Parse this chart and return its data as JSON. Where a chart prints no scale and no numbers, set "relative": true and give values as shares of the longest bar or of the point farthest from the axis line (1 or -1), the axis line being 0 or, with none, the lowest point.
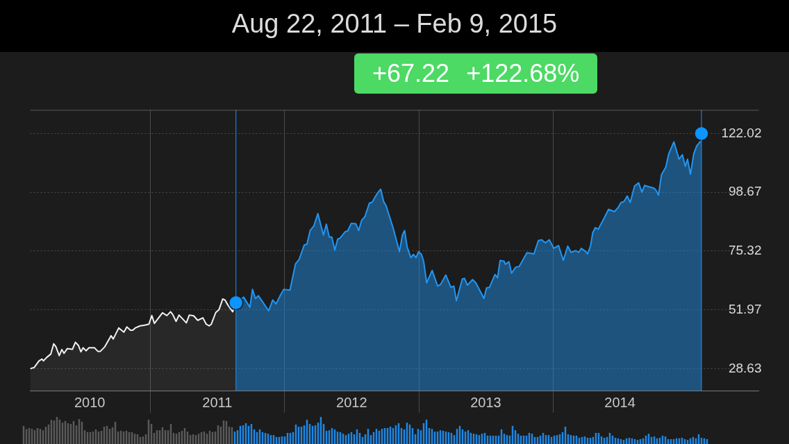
{
  "chart_data": [
    {
      "type": "area",
      "title": "Aug 22, 2011 – Feb 9, 2015",
      "annotations": [
        "+67.22",
        "+122.68%"
      ],
      "xlim": [
        "2010-02-08",
        "2015-07-15"
      ],
      "xticks": [
        {
          "value": "2011-01-01",
          "label": null
        },
        {
          "value": "2012-01-01",
          "label": null
        },
        {
          "value": "2013-01-01",
          "label": null
        },
        {
          "value": "2014-01-01",
          "label": null
        },
        {
          "value": "2010-07-20",
          "label": "2010"
        },
        {
          "value": "2011-07-02",
          "label": "2011"
        },
        {
          "value": "2012-07-02",
          "label": "2012"
        },
        {
          "value": "2013-07-02",
          "label": "2013"
        },
        {
          "value": "2014-07-02",
          "label": "2014"
        }
      ],
      "ylim": [
        19.9,
        131.4
      ],
      "yticks": [
        28.63,
        51.97,
        75.32,
        98.67,
        122.02
      ],
      "grid": true,
      "ref_lines": [
        {
          "axis": "x",
          "value": "2011-08-22",
          "color": "#1e90ff"
        },
        {
          "axis": "x",
          "value": "2015-02-09",
          "color": "#1e90ff"
        }
      ],
      "series": [
        {
          "type": "area",
          "color": "#f2f2f2",
          "x": [
            "2010-02-08",
            "2010-02-19",
            "2010-03-04",
            "2010-03-12",
            "2010-03-16",
            "2010-03-25",
            "2010-04-05",
            "2010-04-13",
            "2010-04-19",
            "2010-04-28",
            "2010-05-05",
            "2010-05-11",
            "2010-05-20",
            "2010-06-03",
            "2010-06-11",
            "2010-06-19",
            "2010-06-26",
            "2010-07-02",
            "2010-07-10",
            "2010-07-18",
            "2010-08-02",
            "2010-08-11",
            "2010-08-18",
            "2010-08-30",
            "2010-09-16",
            "2010-09-22",
            "2010-10-07",
            "2010-10-21",
            "2010-10-29",
            "2010-11-08",
            "2010-11-14",
            "2010-11-21",
            "2010-12-04",
            "2010-12-16",
            "2010-12-28",
            "2011-01-05",
            "2011-01-12",
            "2011-02-03",
            "2011-02-15",
            "2011-02-25",
            "2011-03-03",
            "2011-03-12",
            "2011-03-20",
            "2011-04-09",
            "2011-04-17",
            "2011-04-29",
            "2011-05-10",
            "2011-05-24",
            "2011-06-02",
            "2011-06-10",
            "2011-06-16",
            "2011-06-28",
            "2011-07-07",
            "2011-07-17",
            "2011-07-23",
            "2011-07-31",
            "2011-08-13",
            "2011-08-22"
          ],
          "values": [
            28.6,
            29.1,
            31.7,
            32.4,
            31.7,
            33.1,
            34.4,
            38.5,
            37.3,
            33.8,
            36.2,
            34.7,
            36.6,
            36.3,
            39.1,
            37.9,
            35.3,
            36.9,
            35.7,
            36.9,
            36.9,
            35.5,
            35.5,
            37.3,
            41.7,
            40.4,
            44.8,
            43.1,
            45.2,
            43.9,
            43.9,
            44.8,
            45.6,
            45.9,
            46.3,
            49.7,
            46.6,
            50.8,
            49.7,
            51.2,
            50.1,
            47.4,
            49.9,
            46.8,
            49.9,
            49.6,
            47.8,
            48.8,
            46.3,
            45.6,
            46.3,
            50.9,
            52.1,
            56.3,
            55.9,
            53.9,
            51.2,
            54.8
          ]
        },
        {
          "type": "area",
          "color": "#2196f3",
          "x": [
            "2011-08-22",
            "2011-09-12",
            "2011-09-29",
            "2011-10-06",
            "2011-10-14",
            "2011-10-22",
            "2011-10-30",
            "2011-11-19",
            "2011-11-30",
            "2011-12-09",
            "2011-12-21",
            "2011-12-30",
            "2012-01-16",
            "2012-01-31",
            "2012-02-10",
            "2012-02-24",
            "2012-03-02",
            "2012-03-11",
            "2012-03-21",
            "2012-04-01",
            "2012-04-16",
            "2012-04-24",
            "2012-05-02",
            "2012-05-09",
            "2012-05-17",
            "2012-05-25",
            "2012-05-31",
            "2012-06-15",
            "2012-06-21",
            "2012-07-01",
            "2012-07-13",
            "2012-07-21",
            "2012-07-29",
            "2012-08-07",
            "2012-08-19",
            "2012-08-27",
            "2012-09-09",
            "2012-09-19",
            "2012-09-27",
            "2012-10-04",
            "2012-10-23",
            "2012-11-09",
            "2012-11-17",
            "2012-11-23",
            "2012-11-30",
            "2012-12-10",
            "2012-12-17",
            "2012-12-24",
            "2012-12-31",
            "2013-01-08",
            "2013-01-14",
            "2013-01-22",
            "2013-02-06",
            "2013-02-21",
            "2013-03-01",
            "2013-03-15",
            "2013-03-29",
            "2013-04-06",
            "2013-04-13",
            "2013-04-29",
            "2013-05-05",
            "2013-05-13",
            "2013-05-27",
            "2013-06-05",
            "2013-06-27",
            "2013-07-04",
            "2013-07-12",
            "2013-07-27",
            "2013-08-03",
            "2013-08-10",
            "2013-08-21",
            "2013-08-24",
            "2013-09-03",
            "2013-09-10",
            "2013-09-21",
            "2013-10-01",
            "2013-10-22",
            "2013-11-10",
            "2013-11-22",
            "2013-12-01",
            "2013-12-11",
            "2013-12-22",
            "2014-01-03",
            "2014-01-16",
            "2014-01-29",
            "2014-02-10",
            "2014-02-19",
            "2014-03-04",
            "2014-03-12",
            "2014-03-19",
            "2014-03-28",
            "2014-04-05",
            "2014-04-13",
            "2014-04-19",
            "2014-04-26",
            "2014-05-04",
            "2014-05-20",
            "2014-06-01",
            "2014-06-17",
            "2014-06-26",
            "2014-07-05",
            "2014-07-13",
            "2014-07-22",
            "2014-07-30",
            "2014-08-11",
            "2014-08-22",
            "2014-08-31",
            "2014-09-07",
            "2014-09-21",
            "2014-10-03",
            "2014-10-09",
            "2014-10-15",
            "2014-10-23",
            "2014-11-04",
            "2014-11-12",
            "2014-11-26",
            "2014-12-10",
            "2014-12-19",
            "2014-12-27",
            "2015-01-02",
            "2015-01-10",
            "2015-01-19",
            "2015-01-27",
            "2015-02-06",
            "2015-02-09"
          ],
          "values": [
            54.8,
            57.0,
            53.0,
            60.1,
            56.5,
            57.6,
            55.9,
            51.6,
            55.9,
            54.3,
            57.8,
            60.1,
            59.8,
            70.2,
            72.0,
            77.8,
            78.0,
            83.5,
            85.3,
            90.2,
            81.7,
            86.0,
            80.9,
            80.9,
            75.7,
            80.1,
            80.4,
            83.1,
            83.3,
            86.3,
            86.2,
            83.5,
            87.5,
            89.0,
            94.3,
            94.8,
            98.1,
            99.9,
            95.0,
            93.2,
            84.4,
            75.1,
            81.7,
            83.5,
            76.9,
            72.7,
            74.0,
            72.7,
            75.1,
            74.0,
            71.1,
            62.7,
            67.6,
            61.4,
            62.1,
            65.8,
            60.9,
            61.4,
            55.6,
            64.2,
            64.5,
            61.8,
            64.0,
            62.7,
            56.5,
            60.7,
            60.9,
            66.0,
            64.7,
            71.6,
            71.3,
            70.1,
            71.1,
            66.5,
            68.9,
            69.2,
            74.7,
            74.2,
            79.5,
            79.8,
            78.6,
            79.8,
            76.4,
            77.5,
            71.6,
            77.3,
            74.8,
            75.5,
            74.8,
            76.4,
            75.5,
            74.2,
            77.3,
            82.6,
            84.6,
            84.0,
            88.4,
            91.9,
            91.0,
            92.4,
            94.6,
            95.0,
            97.2,
            94.6,
            101.2,
            102.4,
            98.7,
            101.4,
            100.8,
            100.3,
            99.3,
            97.5,
            105.6,
            108.7,
            114.0,
            118.7,
            111.8,
            113.6,
            109.0,
            111.8,
            105.8,
            114.0,
            117.1,
            118.9,
            122.0
          ]
        },
        {
          "type": "scatter",
          "color": "#0a95ff",
          "marker": "circle",
          "x": [
            "2011-08-22",
            "2015-02-09"
          ],
          "values": [
            54.8,
            122.0
          ]
        }
      ]
    },
    {
      "type": "bar",
      "relative": true,
      "categories": [
        null,
        null,
        null,
        null,
        null,
        null,
        null,
        null,
        null,
        null,
        null,
        null,
        null,
        null,
        null,
        null,
        null,
        null,
        null,
        null,
        null,
        null,
        null,
        null,
        null,
        null,
        null,
        null,
        null,
        null,
        null,
        null,
        null,
        null,
        null,
        null,
        null,
        null,
        null,
        null,
        null,
        null,
        null,
        null,
        null,
        null,
        null,
        null,
        null,
        null,
        null,
        null,
        null,
        null,
        null,
        null,
        null,
        null,
        null,
        null,
        null,
        null,
        null,
        null,
        null,
        null,
        null,
        null,
        null,
        null,
        null,
        null,
        null,
        null,
        null,
        null,
        null,
        null,
        null,
        null,
        null,
        null,
        null,
        null,
        null,
        null,
        null,
        null,
        null,
        null,
        null,
        null,
        null,
        null,
        null,
        null,
        null,
        null,
        null,
        null,
        null,
        null,
        null,
        null,
        null,
        null,
        null,
        null,
        null,
        null,
        null,
        null,
        null,
        null,
        null,
        null,
        null,
        null,
        null,
        null,
        null,
        null,
        null,
        null,
        null,
        null,
        null,
        null,
        null,
        null,
        null,
        null,
        null,
        null,
        null,
        null,
        null,
        null,
        null,
        null,
        null,
        null,
        null,
        null,
        null,
        null,
        null,
        null,
        null,
        null,
        null,
        null,
        null,
        null,
        null,
        null,
        null,
        null,
        null,
        null,
        null,
        null,
        null,
        null,
        null,
        null,
        null,
        null,
        null,
        null,
        null,
        null,
        null,
        null,
        null,
        null,
        null,
        null,
        null,
        null,
        null,
        null,
        null,
        null,
        null,
        null,
        null,
        null,
        null,
        null,
        null,
        null,
        null,
        null,
        null,
        null,
        null,
        null,
        null,
        null,
        null,
        null,
        null,
        null,
        null,
        null,
        null,
        null,
        null,
        null,
        null,
        null,
        null,
        null,
        null,
        null,
        null,
        null,
        null,
        null,
        null,
        null,
        null,
        null,
        null,
        null,
        null,
        null,
        null,
        null,
        null,
        null,
        null,
        null,
        null,
        null,
        null,
        null,
        null,
        null,
        null,
        null,
        null,
        null,
        null,
        null,
        null
      ],
      "values": [
        0.67,
        0.55,
        0.59,
        0.56,
        0.51,
        0.59,
        0.56,
        0.51,
        0.64,
        0.72,
        0.89,
        0.87,
        1.0,
        0.9,
        0.79,
        0.85,
        0.77,
        0.74,
        0.85,
        0.69,
        0.92,
        0.82,
        0.51,
        0.44,
        0.44,
        0.46,
        0.54,
        0.46,
        0.49,
        0.64,
        0.67,
        0.56,
        0.62,
        0.82,
        0.46,
        0.49,
        0.46,
        0.49,
        0.44,
        0.44,
        0.38,
        0.36,
        0.26,
        0.28,
        0.36,
        0.9,
        0.74,
        0.41,
        0.51,
        0.51,
        0.62,
        0.51,
        0.51,
        0.74,
        0.41,
        0.38,
        0.44,
        0.49,
        0.59,
        0.46,
        0.33,
        0.36,
        0.33,
        0.38,
        0.44,
        0.46,
        0.38,
        0.49,
        0.44,
        0.46,
        0.69,
        0.64,
        0.87,
        0.85,
        0.64,
        0.62,
        0.46,
        0.51,
        0.67,
        0.69,
        0.77,
        0.67,
        0.74,
        0.54,
        0.44,
        0.54,
        0.44,
        0.41,
        0.38,
        0.33,
        0.33,
        0.26,
        0.26,
        0.28,
        0.28,
        0.41,
        0.41,
        0.44,
        0.72,
        0.64,
        0.64,
        0.69,
        0.9,
        0.74,
        0.67,
        0.69,
        0.79,
        1.0,
        0.74,
        0.49,
        0.51,
        0.59,
        0.54,
        0.46,
        0.44,
        0.38,
        0.33,
        0.38,
        0.44,
        0.36,
        0.54,
        0.41,
        0.26,
        0.36,
        0.56,
        0.33,
        0.44,
        0.56,
        0.49,
        0.56,
        0.59,
        0.59,
        0.64,
        0.59,
        0.69,
        0.77,
        0.59,
        0.54,
        0.79,
        0.72,
        0.59,
        0.36,
        0.56,
        0.51,
        0.77,
        0.9,
        0.59,
        0.56,
        0.46,
        0.46,
        0.51,
        0.49,
        0.46,
        0.44,
        0.41,
        0.33,
        0.56,
        0.67,
        0.54,
        0.46,
        0.51,
        0.41,
        0.38,
        0.36,
        0.33,
        0.38,
        0.41,
        0.31,
        0.31,
        0.31,
        0.31,
        0.31,
        0.54,
        0.38,
        0.33,
        0.31,
        0.67,
        0.51,
        0.38,
        0.31,
        0.31,
        0.31,
        0.41,
        0.38,
        0.26,
        0.26,
        0.31,
        0.41,
        0.33,
        0.33,
        0.26,
        0.31,
        0.33,
        0.36,
        0.44,
        0.64,
        0.36,
        0.33,
        0.31,
        0.31,
        0.23,
        0.26,
        0.28,
        0.23,
        0.23,
        0.26,
        0.41,
        0.41,
        0.28,
        0.23,
        0.26,
        0.41,
        0.31,
        0.23,
        0.21,
        0.18,
        0.15,
        0.21,
        0.23,
        0.21,
        0.18,
        0.15,
        0.18,
        0.21,
        0.31,
        0.38,
        0.26,
        0.28,
        0.21,
        0.23,
        0.31,
        0.28,
        0.18,
        0.18,
        0.18,
        0.21,
        0.21,
        0.23,
        0.18,
        0.15,
        0.21,
        0.26,
        0.21,
        0.36,
        0.23,
        0.21,
        0.18
      ],
      "colors": [
        "#5a5a5a",
        "#5a5a5a",
        "#5a5a5a",
        "#5a5a5a",
        "#5a5a5a",
        "#5a5a5a",
        "#5a5a5a",
        "#5a5a5a",
        "#5a5a5a",
        "#5a5a5a",
        "#5a5a5a",
        "#5a5a5a",
        "#5a5a5a",
        "#5a5a5a",
        "#5a5a5a",
        "#5a5a5a",
        "#5a5a5a",
        "#5a5a5a",
        "#5a5a5a",
        "#5a5a5a",
        "#5a5a5a",
        "#5a5a5a",
        "#5a5a5a",
        "#5a5a5a",
        "#5a5a5a",
        "#5a5a5a",
        "#5a5a5a",
        "#5a5a5a",
        "#5a5a5a",
        "#5a5a5a",
        "#5a5a5a",
        "#5a5a5a",
        "#5a5a5a",
        "#5a5a5a",
        "#5a5a5a",
        "#5a5a5a",
        "#5a5a5a",
        "#5a5a5a",
        "#5a5a5a",
        "#5a5a5a",
        "#5a5a5a",
        "#5a5a5a",
        "#5a5a5a",
        "#5a5a5a",
        "#5a5a5a",
        "#5a5a5a",
        "#5a5a5a",
        "#5a5a5a",
        "#5a5a5a",
        "#5a5a5a",
        "#5a5a5a",
        "#5a5a5a",
        "#5a5a5a",
        "#5a5a5a",
        "#5a5a5a",
        "#5a5a5a",
        "#5a5a5a",
        "#5a5a5a",
        "#5a5a5a",
        "#5a5a5a",
        "#5a5a5a",
        "#5a5a5a",
        "#5a5a5a",
        "#5a5a5a",
        "#5a5a5a",
        "#5a5a5a",
        "#5a5a5a",
        "#5a5a5a",
        "#5a5a5a",
        "#5a5a5a",
        "#5a5a5a",
        "#5a5a5a",
        "#5a5a5a",
        "#5a5a5a",
        "#5a5a5a",
        "#5a5a5a",
        "#1e88e5",
        "#1e88e5",
        "#1e88e5",
        "#1e88e5",
        "#1e88e5",
        "#1e88e5",
        "#1e88e5",
        "#1e88e5",
        "#1e88e5",
        "#1e88e5",
        "#1e88e5",
        "#1e88e5",
        "#1e88e5",
        "#1e88e5",
        "#1e88e5",
        "#1e88e5",
        "#1e88e5",
        "#1e88e5",
        "#1e88e5",
        "#1e88e5",
        "#1e88e5",
        "#1e88e5",
        "#1e88e5",
        "#1e88e5",
        "#1e88e5",
        "#1e88e5",
        "#1e88e5",
        "#1e88e5",
        "#1e88e5",
        "#1e88e5",
        "#1e88e5",
        "#1e88e5",
        "#1e88e5",
        "#1e88e5",
        "#1e88e5",
        "#1e88e5",
        "#1e88e5",
        "#1e88e5",
        "#1e88e5",
        "#1e88e5",
        "#1e88e5",
        "#1e88e5",
        "#1e88e5",
        "#1e88e5",
        "#1e88e5",
        "#1e88e5",
        "#1e88e5",
        "#1e88e5",
        "#1e88e5",
        "#1e88e5",
        "#1e88e5",
        "#1e88e5",
        "#1e88e5",
        "#1e88e5",
        "#1e88e5",
        "#1e88e5",
        "#1e88e5",
        "#1e88e5",
        "#1e88e5",
        "#1e88e5",
        "#1e88e5",
        "#1e88e5",
        "#1e88e5",
        "#1e88e5",
        "#1e88e5",
        "#1e88e5",
        "#1e88e5",
        "#1e88e5",
        "#1e88e5",
        "#1e88e5",
        "#1e88e5",
        "#1e88e5",
        "#1e88e5",
        "#1e88e5",
        "#1e88e5",
        "#1e88e5",
        "#1e88e5",
        "#1e88e5",
        "#1e88e5",
        "#1e88e5",
        "#1e88e5",
        "#1e88e5",
        "#1e88e5",
        "#1e88e5",
        "#1e88e5",
        "#1e88e5",
        "#1e88e5",
        "#1e88e5",
        "#1e88e5",
        "#1e88e5",
        "#1e88e5",
        "#1e88e5",
        "#1e88e5",
        "#1e88e5",
        "#1e88e5",
        "#1e88e5",
        "#1e88e5",
        "#1e88e5",
        "#1e88e5",
        "#1e88e5",
        "#1e88e5",
        "#1e88e5",
        "#1e88e5",
        "#1e88e5",
        "#1e88e5",
        "#1e88e5",
        "#1e88e5",
        "#1e88e5",
        "#1e88e5",
        "#1e88e5",
        "#1e88e5",
        "#1e88e5",
        "#1e88e5",
        "#1e88e5",
        "#1e88e5",
        "#1e88e5",
        "#1e88e5",
        "#1e88e5",
        "#1e88e5",
        "#1e88e5",
        "#1e88e5",
        "#1e88e5",
        "#1e88e5",
        "#1e88e5",
        "#1e88e5",
        "#1e88e5",
        "#1e88e5",
        "#1e88e5",
        "#1e88e5",
        "#1e88e5",
        "#1e88e5",
        "#1e88e5",
        "#1e88e5",
        "#1e88e5",
        "#1e88e5",
        "#1e88e5",
        "#1e88e5",
        "#1e88e5",
        "#1e88e5",
        "#1e88e5",
        "#1e88e5",
        "#1e88e5",
        "#1e88e5",
        "#1e88e5",
        "#1e88e5",
        "#1e88e5",
        "#1e88e5",
        "#1e88e5",
        "#1e88e5",
        "#1e88e5",
        "#1e88e5",
        "#1e88e5",
        "#1e88e5",
        "#1e88e5",
        "#1e88e5",
        "#1e88e5",
        "#1e88e5",
        "#1e88e5",
        "#1e88e5",
        "#1e88e5",
        "#1e88e5",
        "#1e88e5",
        "#1e88e5",
        "#1e88e5",
        "#1e88e5",
        "#1e88e5",
        "#1e88e5",
        "#1e88e5",
        "#1e88e5",
        "#1e88e5",
        "#1e88e5"
      ]
    }
  ]
}
